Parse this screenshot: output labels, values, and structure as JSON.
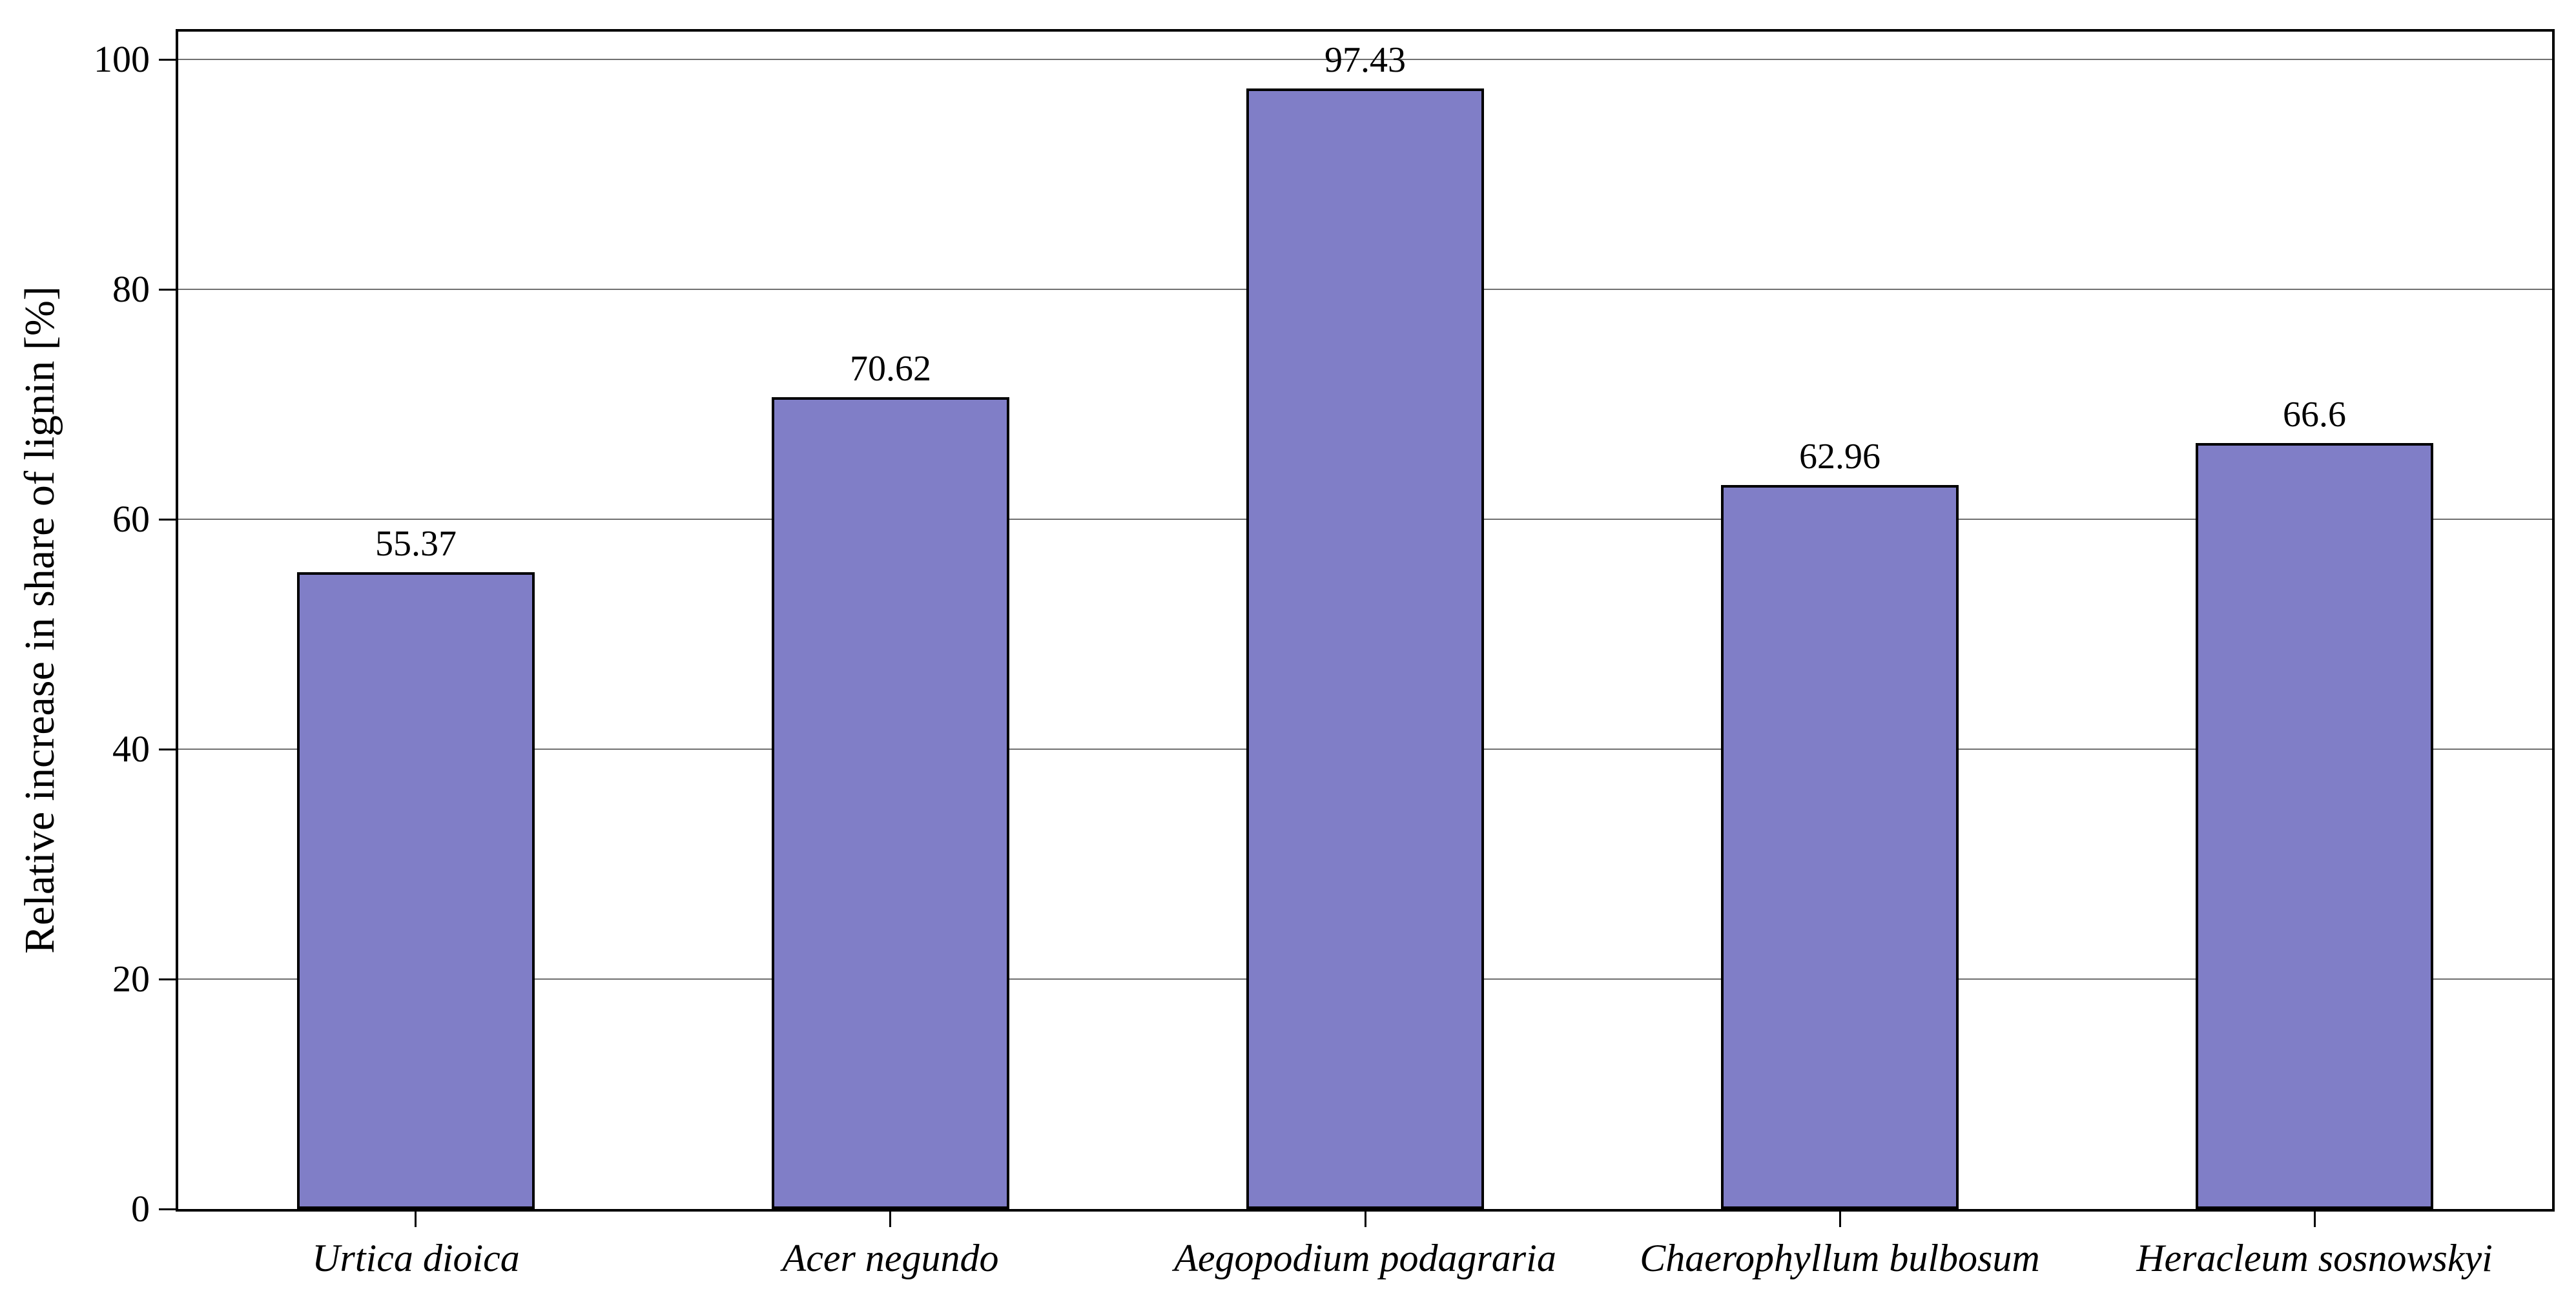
{
  "chart_data": {
    "type": "bar",
    "title": "",
    "xlabel": "",
    "ylabel": "Relative increase in share of lignin [%]",
    "categories": [
      "Urtica dioica",
      "Acer negundo",
      "Aegopodium podagraria",
      "Chaerophyllum bulbosum",
      "Heracleum sosnowskyi"
    ],
    "values": [
      55.37,
      70.62,
      97.43,
      62.96,
      66.6
    ],
    "value_labels": [
      "55.37",
      "70.62",
      "97.43",
      "62.96",
      "66.6"
    ],
    "yticks": [
      0,
      20,
      40,
      60,
      80,
      100
    ],
    "ylim": [
      0,
      102.4
    ],
    "grid": "horizontal-only",
    "legend": "none",
    "category_label_style": "italic",
    "colors": {
      "bar_fill": "#807EC7",
      "bar_edge": "#000000",
      "gridline": "#707070",
      "spine": "#000000",
      "text": "#000000",
      "background": "#ffffff"
    }
  }
}
